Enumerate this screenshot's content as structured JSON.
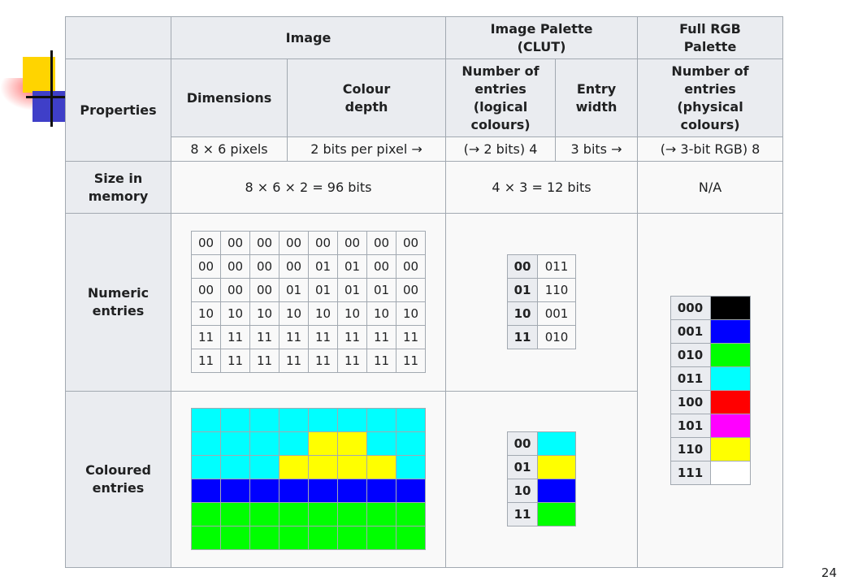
{
  "headers": {
    "image": "Image",
    "image_palette": "Image Palette (CLUT)",
    "full_rgb_palette": "Full RGB Palette",
    "properties": "Properties",
    "dimensions": "Dimensions",
    "colour_depth": "Colour depth",
    "clut_entries": "Number of entries (logical colours)",
    "entry_width": "Entry width",
    "rgb_entries": "Number of entries (physical colours)"
  },
  "properties_values": {
    "dimensions": "8 × 6 pixels",
    "colour_depth": "2 bits per pixel →",
    "clut_entries": "(→ 2 bits) 4",
    "entry_width": "3 bits →",
    "rgb_entries": "(→ 3-bit RGB) 8"
  },
  "size_in_memory": {
    "label": "Size in memory",
    "image": "8 × 6 × 2 = 96 bits",
    "clut": "4 × 3 = 12 bits",
    "rgb": "N/A"
  },
  "numeric_entries": {
    "label": "Numeric entries",
    "pixels": [
      [
        "00",
        "00",
        "00",
        "00",
        "00",
        "00",
        "00",
        "00"
      ],
      [
        "00",
        "00",
        "00",
        "00",
        "01",
        "01",
        "00",
        "00"
      ],
      [
        "00",
        "00",
        "00",
        "01",
        "01",
        "01",
        "01",
        "00"
      ],
      [
        "10",
        "10",
        "10",
        "10",
        "10",
        "10",
        "10",
        "10"
      ],
      [
        "11",
        "11",
        "11",
        "11",
        "11",
        "11",
        "11",
        "11"
      ],
      [
        "11",
        "11",
        "11",
        "11",
        "11",
        "11",
        "11",
        "11"
      ]
    ],
    "clut": [
      {
        "index": "00",
        "value": "011"
      },
      {
        "index": "01",
        "value": "110"
      },
      {
        "index": "10",
        "value": "001"
      },
      {
        "index": "11",
        "value": "010"
      }
    ],
    "rgb": [
      {
        "index": "000",
        "color": "#000000"
      },
      {
        "index": "001",
        "color": "#0000ff"
      },
      {
        "index": "010",
        "color": "#00ff00"
      },
      {
        "index": "011",
        "color": "#00ffff"
      },
      {
        "index": "100",
        "color": "#ff0000"
      },
      {
        "index": "101",
        "color": "#ff00ff"
      },
      {
        "index": "110",
        "color": "#ffff00"
      },
      {
        "index": "111",
        "color": "#ffffff"
      }
    ]
  },
  "coloured_entries": {
    "label": "Coloured entries",
    "clut": [
      {
        "index": "00",
        "color": "#00ffff"
      },
      {
        "index": "01",
        "color": "#ffff00"
      },
      {
        "index": "10",
        "color": "#0000ff"
      },
      {
        "index": "11",
        "color": "#00ff00"
      }
    ]
  },
  "palette_colors": {
    "00": "#00ffff",
    "01": "#ffff00",
    "10": "#0000ff",
    "11": "#00ff00"
  },
  "page_number": "24"
}
